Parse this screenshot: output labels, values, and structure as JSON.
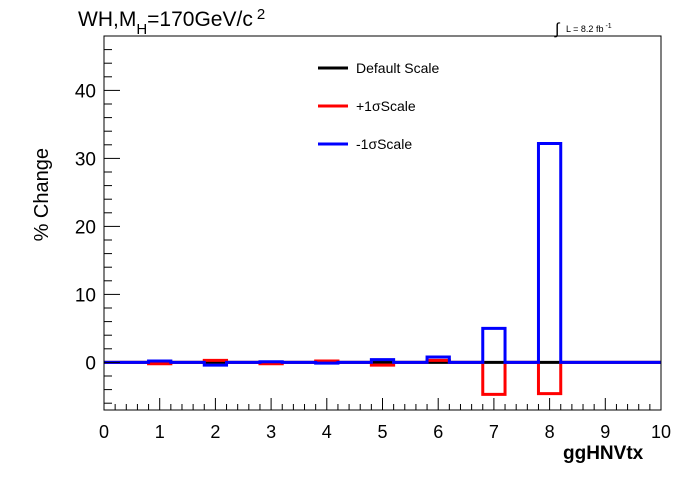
{
  "header": {
    "title_main": "WH,M",
    "title_sub": "H",
    "title_rest": "=170GeV/c",
    "title_sup": "2",
    "lumi_integral": "∫",
    "lumi_text": "L = 8.2 fb",
    "lumi_sup": "-1"
  },
  "chart_data": {
    "type": "line",
    "style": "histogram-step",
    "xlabel": "ggHNVtx",
    "ylabel": "% Change",
    "xlim": [
      0,
      10
    ],
    "ylim": [
      -7,
      48
    ],
    "x_ticks": [
      "0",
      "1",
      "2",
      "3",
      "4",
      "5",
      "6",
      "7",
      "8",
      "9",
      "10"
    ],
    "y_ticks": [
      "0",
      "10",
      "20",
      "30",
      "40"
    ],
    "bin_edges": [
      -0.2,
      0.8,
      1.2,
      1.8,
      2.2,
      2.8,
      3.2,
      3.8,
      4.2,
      4.8,
      5.2,
      5.8,
      6.2,
      6.8,
      7.2,
      7.8,
      8.2,
      8.8,
      10.0
    ],
    "series": [
      {
        "name": "Default Scale",
        "color": "#000000",
        "values": [
          0,
          0,
          0,
          0,
          0,
          0,
          0,
          0,
          0,
          0,
          0,
          0,
          0,
          0,
          0,
          0,
          0,
          0
        ]
      },
      {
        "name": "+1σScale",
        "color": "#ff0000",
        "values": [
          0,
          -0.2,
          0,
          0.3,
          0,
          -0.2,
          0,
          0.2,
          0,
          -0.4,
          0,
          0.3,
          0,
          -4.7,
          0,
          -4.6,
          0,
          0
        ]
      },
      {
        "name": "-1σScale",
        "color": "#0000ff",
        "values": [
          0,
          0.2,
          0,
          -0.4,
          0,
          0.1,
          0,
          -0.1,
          0,
          0.4,
          0,
          0.8,
          0,
          5.0,
          0,
          32.2,
          0,
          0
        ]
      }
    ],
    "legend_position": "top-center",
    "grid": false
  }
}
